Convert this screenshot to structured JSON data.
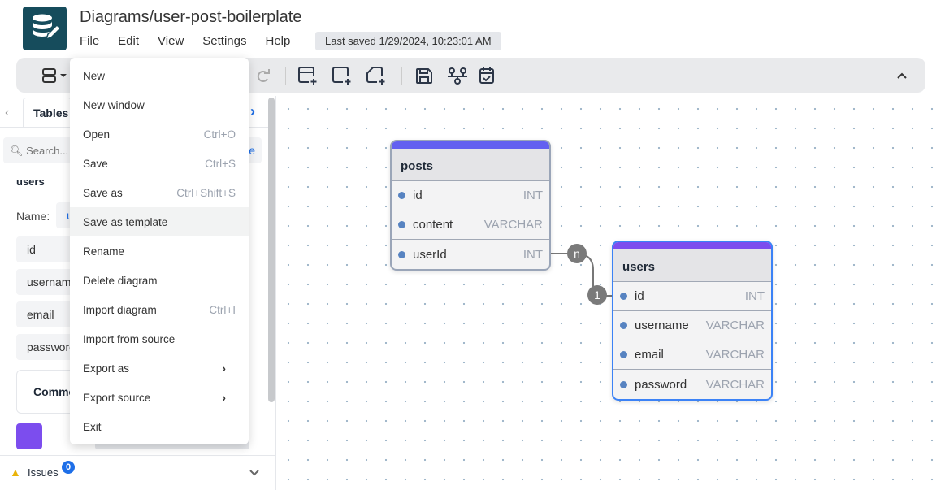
{
  "header": {
    "title": "Diagrams/user-post-boilerplate",
    "menus": [
      "File",
      "Edit",
      "View",
      "Settings",
      "Help"
    ],
    "last_saved": "Last saved 1/29/2024, 10:23:01 AM"
  },
  "toolbar": {
    "icons": [
      "layout-icon",
      "redo-icon",
      "add-table-icon",
      "add-area-icon",
      "add-note-icon",
      "save-icon",
      "relationship-icon",
      "todo-icon",
      "collapse-icon"
    ]
  },
  "sidebar": {
    "tab": "Tables",
    "search_placeholder": "Search...",
    "add_button_fragment": "e",
    "table_name": "users",
    "name_label": "Name:",
    "name_value": "users",
    "fields": [
      "id",
      "username",
      "email",
      "password"
    ],
    "comment": "Comment",
    "color": "#7c4dee",
    "issues_label": "Issues",
    "issues_count": "0"
  },
  "file_menu": {
    "items": [
      {
        "label": "New",
        "shortcut": ""
      },
      {
        "label": "New window",
        "shortcut": ""
      },
      {
        "label": "Open",
        "shortcut": "Ctrl+O"
      },
      {
        "label": "Save",
        "shortcut": "Ctrl+S"
      },
      {
        "label": "Save as",
        "shortcut": "Ctrl+Shift+S"
      },
      {
        "label": "Save as template",
        "shortcut": ""
      },
      {
        "label": "Rename",
        "shortcut": ""
      },
      {
        "label": "Delete diagram",
        "shortcut": ""
      },
      {
        "label": "Import diagram",
        "shortcut": "Ctrl+I"
      },
      {
        "label": "Import from source",
        "shortcut": ""
      },
      {
        "label": "Export as",
        "shortcut": "›"
      },
      {
        "label": "Export source",
        "shortcut": "›"
      },
      {
        "label": "Exit",
        "shortcut": ""
      }
    ]
  },
  "diagram": {
    "tables": [
      {
        "name": "posts",
        "color": "#6360f0",
        "fields": [
          {
            "name": "id",
            "type": "INT"
          },
          {
            "name": "content",
            "type": "VARCHAR"
          },
          {
            "name": "userId",
            "type": "INT"
          }
        ]
      },
      {
        "name": "users",
        "color": "#7c4dee",
        "fields": [
          {
            "name": "id",
            "type": "INT"
          },
          {
            "name": "username",
            "type": "VARCHAR"
          },
          {
            "name": "email",
            "type": "VARCHAR"
          },
          {
            "name": "password",
            "type": "VARCHAR"
          }
        ]
      }
    ],
    "relationship": {
      "from": "posts.userId",
      "to": "users.id",
      "from_cardinality": "n",
      "to_cardinality": "1"
    }
  }
}
